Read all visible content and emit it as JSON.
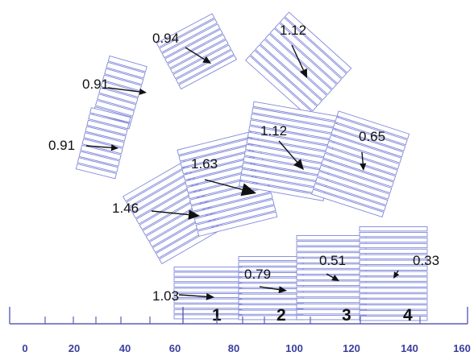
{
  "scale": {
    "tick_labels": [
      "0",
      "20",
      "40",
      "60",
      "80",
      "100",
      "120",
      "140",
      "160"
    ],
    "line_color": "#5a5fb5",
    "label_color": "#3b3f9e"
  },
  "block_color": "#8088d8",
  "arrow_color": "#111111",
  "blocks": [
    {
      "id": "b1",
      "value": "0.91",
      "arrow_direction_deg": 5
    },
    {
      "id": "b2",
      "value": "0.91",
      "arrow_direction_deg": 3
    },
    {
      "id": "b3",
      "value": "0.94",
      "arrow_direction_deg": 30
    },
    {
      "id": "b4",
      "value": "1.12",
      "arrow_direction_deg": 60
    },
    {
      "id": "b5",
      "value": "1.46",
      "arrow_direction_deg": 5
    },
    {
      "id": "b6",
      "value": "1.63",
      "arrow_direction_deg": 20
    },
    {
      "id": "b7",
      "value": "1.12",
      "arrow_direction_deg": 45
    },
    {
      "id": "b8",
      "value": "0.65",
      "arrow_direction_deg": 95
    },
    {
      "id": "b9",
      "value": "1.03",
      "column_label": "1",
      "arrow_direction_deg": 5
    },
    {
      "id": "b10",
      "value": "0.79",
      "column_label": "2",
      "arrow_direction_deg": 10
    },
    {
      "id": "b11",
      "value": "0.51",
      "column_label": "3",
      "arrow_direction_deg": 30
    },
    {
      "id": "b12",
      "value": "0.33",
      "column_label": "4",
      "arrow_direction_deg": 125
    }
  ]
}
